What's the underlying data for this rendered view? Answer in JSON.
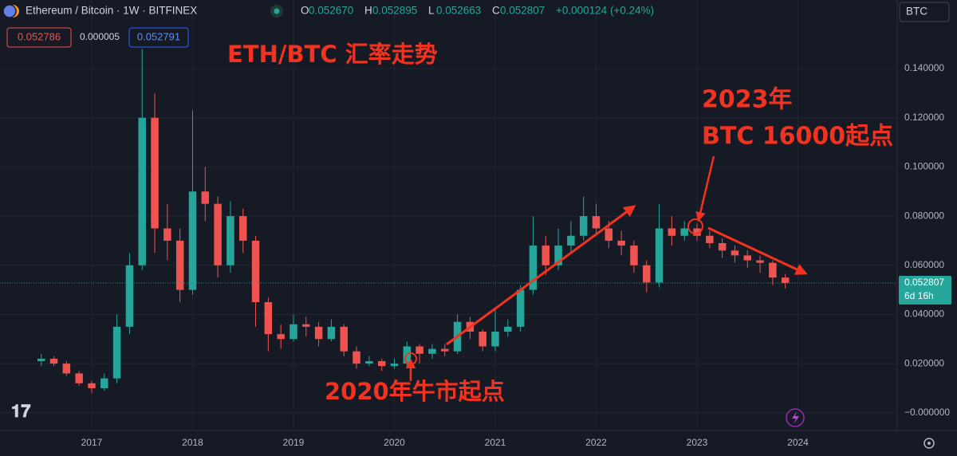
{
  "chart_data": {
    "type": "candlestick",
    "title": "Ethereum / Bitcoin · 1W · BITFINEX",
    "ohlc_header": [
      {
        "key": "O",
        "text": "0.052670"
      },
      {
        "key": "H",
        "text": "0.052895"
      },
      {
        "key": "L",
        "text": "0.052663"
      },
      {
        "key": "C",
        "text": "0.052807"
      }
    ],
    "change": "+0.000124 (+0.24%)",
    "currency": "BTC",
    "sell_price": "0.052786",
    "spread": "0.000005",
    "buy_price": "0.052791",
    "annotations": [
      "ETH/BTC 汇率走势",
      "2023年",
      "BTC 16000起点",
      "2020年牛市起点"
    ],
    "countdown": "6d 16h",
    "up_color": "#26a69a",
    "down_color": "#ef5350",
    "grid": true,
    "xlim": [
      2016.091,
      2024.984
    ],
    "xticks": [
      2017,
      2018,
      2019,
      2020,
      2021,
      2022,
      2023,
      2024
    ],
    "ylim": [
      -0.0072,
      0.1679
    ],
    "yticks": [
      {
        "value": 0,
        "label": "−0.000000"
      },
      {
        "value": 0.02,
        "label": "0.020000"
      },
      {
        "value": 0.04,
        "label": "0.040000"
      },
      {
        "value": 0.06,
        "label": "0.060000"
      },
      {
        "value": 0.08,
        "label": "0.080000"
      },
      {
        "value": 0.1,
        "label": "0.100000"
      },
      {
        "value": 0.12,
        "label": "0.120000"
      },
      {
        "value": 0.14,
        "label": "0.140000"
      }
    ],
    "x": [
      2016.5,
      2016.625,
      2016.75,
      2016.875,
      2017,
      2017.125,
      2017.25,
      2017.375,
      2017.5,
      2017.625,
      2017.75,
      2017.875,
      2018,
      2018.125,
      2018.25,
      2018.375,
      2018.5,
      2018.625,
      2018.75,
      2018.875,
      2019,
      2019.125,
      2019.25,
      2019.375,
      2019.5,
      2019.625,
      2019.75,
      2019.875,
      2020,
      2020.125,
      2020.25,
      2020.375,
      2020.5,
      2020.625,
      2020.75,
      2020.875,
      2021,
      2021.125,
      2021.25,
      2021.375,
      2021.5,
      2021.625,
      2021.75,
      2021.875,
      2022,
      2022.125,
      2022.25,
      2022.375,
      2022.5,
      2022.625,
      2022.75,
      2022.875,
      2023,
      2023.125,
      2023.25,
      2023.375,
      2023.5,
      2023.625,
      2023.75,
      2023.875
    ],
    "open": [
      0.021,
      0.022,
      0.02,
      0.016,
      0.012,
      0.01,
      0.014,
      0.035,
      0.06,
      0.12,
      0.075,
      0.07,
      0.05,
      0.09,
      0.085,
      0.06,
      0.08,
      0.07,
      0.045,
      0.032,
      0.03,
      0.036,
      0.035,
      0.03,
      0.035,
      0.025,
      0.02,
      0.021,
      0.019,
      0.02,
      0.027,
      0.024,
      0.026,
      0.025,
      0.037,
      0.033,
      0.027,
      0.033,
      0.035,
      0.05,
      0.068,
      0.06,
      0.068,
      0.072,
      0.08,
      0.075,
      0.07,
      0.068,
      0.06,
      0.053,
      0.075,
      0.072,
      0.075,
      0.072,
      0.069,
      0.066,
      0.064,
      0.062,
      0.061,
      0.055
    ],
    "high": [
      0.024,
      0.023,
      0.021,
      0.017,
      0.013,
      0.016,
      0.04,
      0.065,
      0.148,
      0.13,
      0.085,
      0.075,
      0.123,
      0.1,
      0.088,
      0.086,
      0.083,
      0.072,
      0.047,
      0.036,
      0.04,
      0.039,
      0.037,
      0.038,
      0.036,
      0.027,
      0.023,
      0.022,
      0.022,
      0.029,
      0.028,
      0.028,
      0.028,
      0.04,
      0.039,
      0.034,
      0.042,
      0.038,
      0.052,
      0.08,
      0.072,
      0.075,
      0.078,
      0.088,
      0.085,
      0.078,
      0.074,
      0.07,
      0.062,
      0.085,
      0.08,
      0.078,
      0.077,
      0.074,
      0.071,
      0.068,
      0.066,
      0.064,
      0.062,
      0.0565
    ],
    "low": [
      0.019,
      0.019,
      0.015,
      0.011,
      0.008,
      0.009,
      0.012,
      0.032,
      0.058,
      0.065,
      0.062,
      0.045,
      0.048,
      0.078,
      0.055,
      0.057,
      0.065,
      0.035,
      0.025,
      0.026,
      0.029,
      0.031,
      0.027,
      0.029,
      0.023,
      0.018,
      0.019,
      0.017,
      0.018,
      0.019,
      0.02,
      0.022,
      0.023,
      0.024,
      0.03,
      0.025,
      0.025,
      0.031,
      0.033,
      0.048,
      0.056,
      0.058,
      0.065,
      0.07,
      0.072,
      0.067,
      0.064,
      0.057,
      0.049,
      0.051,
      0.068,
      0.07,
      0.07,
      0.067,
      0.063,
      0.061,
      0.059,
      0.057,
      0.052,
      0.0505
    ],
    "close": [
      0.022,
      0.02,
      0.016,
      0.012,
      0.01,
      0.014,
      0.035,
      0.06,
      0.12,
      0.075,
      0.07,
      0.05,
      0.09,
      0.085,
      0.06,
      0.08,
      0.07,
      0.045,
      0.032,
      0.03,
      0.036,
      0.035,
      0.03,
      0.035,
      0.025,
      0.02,
      0.021,
      0.019,
      0.02,
      0.027,
      0.024,
      0.026,
      0.025,
      0.037,
      0.033,
      0.027,
      0.033,
      0.035,
      0.05,
      0.068,
      0.06,
      0.068,
      0.072,
      0.08,
      0.075,
      0.07,
      0.068,
      0.06,
      0.053,
      0.075,
      0.072,
      0.075,
      0.072,
      0.069,
      0.066,
      0.064,
      0.062,
      0.061,
      0.055,
      0.052807
    ]
  }
}
